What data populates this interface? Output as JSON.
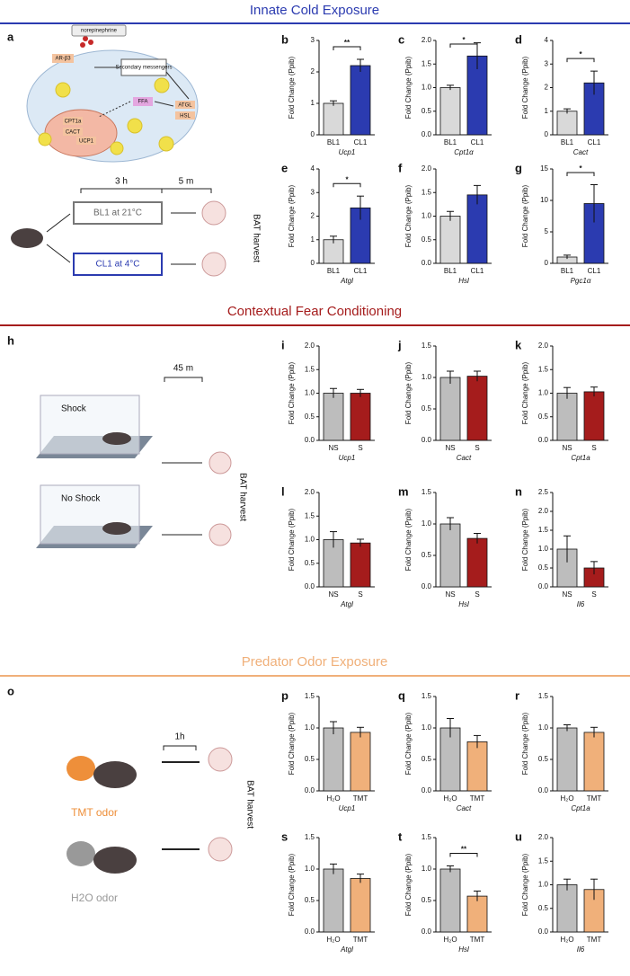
{
  "sections": [
    {
      "title": "Innate Cold Exposure",
      "color": "#2b3bb0"
    },
    {
      "title": "Contextual Fear Conditioning",
      "color": "#a51c1c"
    },
    {
      "title": "Predator Odor Exposure",
      "color": "#f0b07a"
    }
  ],
  "diagrams": {
    "a": {
      "panel": "a",
      "norepinephrine": "norepinephrine",
      "receptor": "AR-β3",
      "messengers": "Secondary messengers",
      "cpt": "CPT1a",
      "cact": "CACT",
      "ffa": "FFA",
      "atgl": "ATGL",
      "hsl": "HSL",
      "ucp": "UCP1",
      "t1": "3 h",
      "t2": "5 m",
      "bl": "BL1 at 21°C",
      "cl": "CL1 at 4°C",
      "harvest": "BAT harvest"
    },
    "h": {
      "panel": "h",
      "shock": "Shock",
      "noshock": "No Shock",
      "t": "45 m",
      "harvest": "BAT harvest"
    },
    "o": {
      "panel": "o",
      "t": "1h",
      "tmt": "TMT odor",
      "h2o": "H2O odor",
      "harvest": "BAT harvest"
    }
  },
  "chart_data": [
    {
      "type": "bar",
      "panel": "b",
      "ylabel": "Fold Change (Ppib)",
      "xlabel": "Ucp1",
      "categories": [
        "BL1",
        "CL1"
      ],
      "values": [
        1.0,
        2.2
      ],
      "errors": [
        0.08,
        0.2
      ],
      "colors": [
        "#d9d9d9",
        "#2b3bb0"
      ],
      "ylim": [
        0,
        3
      ],
      "yticks": [
        0,
        1,
        2,
        3
      ],
      "significance": "**"
    },
    {
      "type": "bar",
      "panel": "c",
      "ylabel": "Fold Change (Ppib)",
      "xlabel": "Cpt1α",
      "categories": [
        "BL1",
        "CL1"
      ],
      "values": [
        1.0,
        1.67
      ],
      "errors": [
        0.05,
        0.28
      ],
      "colors": [
        "#d9d9d9",
        "#2b3bb0"
      ],
      "ylim": [
        0,
        2
      ],
      "yticks": [
        {
          "value": 0,
          "label": "0.0"
        },
        0.5,
        {
          "value": 1,
          "label": "1.0"
        },
        1.5,
        {
          "value": 2,
          "label": "2.0"
        }
      ],
      "significance": "*"
    },
    {
      "type": "bar",
      "panel": "d",
      "ylabel": "Fold Change (Ppib)",
      "xlabel": "Cact",
      "categories": [
        "BL1",
        "CL1"
      ],
      "values": [
        1.0,
        2.2
      ],
      "errors": [
        0.1,
        0.5
      ],
      "colors": [
        "#d9d9d9",
        "#2b3bb0"
      ],
      "ylim": [
        0,
        4
      ],
      "yticks": [
        0,
        1,
        2,
        3,
        4
      ],
      "significance": "*"
    },
    {
      "type": "bar",
      "panel": "e",
      "ylabel": "Fold Change (Ppib)",
      "xlabel": "Atgl",
      "categories": [
        "BL1",
        "CL1"
      ],
      "values": [
        1.0,
        2.35
      ],
      "errors": [
        0.15,
        0.5
      ],
      "colors": [
        "#d9d9d9",
        "#2b3bb0"
      ],
      "ylim": [
        0,
        4
      ],
      "yticks": [
        0,
        1,
        2,
        3,
        4
      ],
      "significance": "*"
    },
    {
      "type": "bar",
      "panel": "f",
      "ylabel": "Fold Change (Ppib)",
      "xlabel": "Hsl",
      "categories": [
        "BL1",
        "CL1"
      ],
      "values": [
        1.0,
        1.45
      ],
      "errors": [
        0.1,
        0.2
      ],
      "colors": [
        "#d9d9d9",
        "#2b3bb0"
      ],
      "ylim": [
        0,
        2
      ],
      "yticks": [
        {
          "value": 0,
          "label": "0.0"
        },
        0.5,
        {
          "value": 1,
          "label": "1.0"
        },
        1.5,
        {
          "value": 2,
          "label": "2.0"
        }
      ]
    },
    {
      "type": "bar",
      "panel": "g",
      "ylabel": "Fold Change (Ppib)",
      "xlabel": "Pgc1α",
      "categories": [
        "BL1",
        "CL1"
      ],
      "values": [
        1.0,
        9.5
      ],
      "errors": [
        0.3,
        3.0
      ],
      "colors": [
        "#d9d9d9",
        "#2b3bb0"
      ],
      "ylim": [
        0,
        15
      ],
      "yticks": [
        0,
        5,
        10,
        15
      ],
      "significance": "*"
    },
    {
      "type": "bar",
      "panel": "i",
      "ylabel": "Fold Change (Ppib)",
      "xlabel": "Ucp1",
      "categories": [
        "NS",
        "S"
      ],
      "values": [
        1.0,
        1.0
      ],
      "errors": [
        0.1,
        0.08
      ],
      "colors": [
        "#bdbdbd",
        "#a51c1c"
      ],
      "ylim": [
        0,
        2
      ],
      "yticks": [
        {
          "value": 0,
          "label": "0.0"
        },
        0.5,
        {
          "value": 1,
          "label": "1.0"
        },
        1.5,
        {
          "value": 2,
          "label": "2.0"
        }
      ]
    },
    {
      "type": "bar",
      "panel": "j",
      "ylabel": "Fold Change (Ppib)",
      "xlabel": "Cact",
      "categories": [
        "NS",
        "S"
      ],
      "values": [
        1.0,
        1.02
      ],
      "errors": [
        0.1,
        0.08
      ],
      "colors": [
        "#bdbdbd",
        "#a51c1c"
      ],
      "ylim": [
        0,
        1.5
      ],
      "yticks": [
        {
          "value": 0,
          "label": "0.0"
        },
        0.5,
        {
          "value": 1,
          "label": "1.0"
        },
        1.5
      ]
    },
    {
      "type": "bar",
      "panel": "k",
      "ylabel": "Fold Change (Ppib)",
      "xlabel": "Cpt1a",
      "categories": [
        "NS",
        "S"
      ],
      "values": [
        1.0,
        1.03
      ],
      "errors": [
        0.12,
        0.1
      ],
      "colors": [
        "#bdbdbd",
        "#a51c1c"
      ],
      "ylim": [
        0,
        2
      ],
      "yticks": [
        {
          "value": 0,
          "label": "0.0"
        },
        0.5,
        {
          "value": 1,
          "label": "1.0"
        },
        1.5,
        {
          "value": 2,
          "label": "2.0"
        }
      ]
    },
    {
      "type": "bar",
      "panel": "l",
      "ylabel": "Fold Change (Ppib)",
      "xlabel": "Atgl",
      "categories": [
        "NS",
        "S"
      ],
      "values": [
        1.0,
        0.93
      ],
      "errors": [
        0.17,
        0.08
      ],
      "colors": [
        "#bdbdbd",
        "#a51c1c"
      ],
      "ylim": [
        0,
        2
      ],
      "yticks": [
        {
          "value": 0,
          "label": "0.0"
        },
        0.5,
        {
          "value": 1,
          "label": "1.0"
        },
        1.5,
        {
          "value": 2,
          "label": "2.0"
        }
      ]
    },
    {
      "type": "bar",
      "panel": "m",
      "ylabel": "Fold Change (Ppib)",
      "xlabel": "Hsl",
      "categories": [
        "NS",
        "S"
      ],
      "values": [
        1.0,
        0.77
      ],
      "errors": [
        0.1,
        0.08
      ],
      "colors": [
        "#bdbdbd",
        "#a51c1c"
      ],
      "ylim": [
        0,
        1.5
      ],
      "yticks": [
        {
          "value": 0,
          "label": "0.0"
        },
        0.5,
        {
          "value": 1,
          "label": "1.0"
        },
        1.5
      ]
    },
    {
      "type": "bar",
      "panel": "n",
      "ylabel": "Fold Change (Ppib)",
      "xlabel": "Il6",
      "categories": [
        "NS",
        "S"
      ],
      "values": [
        1.0,
        0.5
      ],
      "errors": [
        0.35,
        0.17
      ],
      "colors": [
        "#bdbdbd",
        "#a51c1c"
      ],
      "ylim": [
        0,
        2.5
      ],
      "yticks": [
        {
          "value": 0,
          "label": "0.0"
        },
        0.5,
        {
          "value": 1,
          "label": "1.0"
        },
        1.5,
        {
          "value": 2,
          "label": "2.0"
        },
        2.5
      ]
    },
    {
      "type": "bar",
      "panel": "p",
      "ylabel": "Fold Change (Ppib)",
      "xlabel": "Ucp1",
      "categories": [
        "H₂O",
        "TMT"
      ],
      "values": [
        1.0,
        0.93
      ],
      "errors": [
        0.1,
        0.08
      ],
      "colors": [
        "#bdbdbd",
        "#f0b07a"
      ],
      "ylim": [
        0,
        1.5
      ],
      "yticks": [
        {
          "value": 0,
          "label": "0.0"
        },
        0.5,
        {
          "value": 1,
          "label": "1.0"
        },
        1.5
      ]
    },
    {
      "type": "bar",
      "panel": "q",
      "ylabel": "Fold Change (Ppib)",
      "xlabel": "Cact",
      "categories": [
        "H₂O",
        "TMT"
      ],
      "values": [
        1.0,
        0.78
      ],
      "errors": [
        0.15,
        0.1
      ],
      "colors": [
        "#bdbdbd",
        "#f0b07a"
      ],
      "ylim": [
        0,
        1.5
      ],
      "yticks": [
        {
          "value": 0,
          "label": "0.0"
        },
        0.5,
        {
          "value": 1,
          "label": "1.0"
        },
        1.5
      ]
    },
    {
      "type": "bar",
      "panel": "r",
      "ylabel": "Fold Change (Ppib)",
      "xlabel": "Cpt1a",
      "categories": [
        "H₂O",
        "TMT"
      ],
      "values": [
        1.0,
        0.93
      ],
      "errors": [
        0.05,
        0.08
      ],
      "colors": [
        "#bdbdbd",
        "#f0b07a"
      ],
      "ylim": [
        0,
        1.5
      ],
      "yticks": [
        {
          "value": 0,
          "label": "0.0"
        },
        0.5,
        {
          "value": 1,
          "label": "1.0"
        },
        1.5
      ]
    },
    {
      "type": "bar",
      "panel": "s",
      "ylabel": "Fold Change (Ppib)",
      "xlabel": "Atgl",
      "categories": [
        "H₂O",
        "TMT"
      ],
      "values": [
        1.0,
        0.85
      ],
      "errors": [
        0.08,
        0.07
      ],
      "colors": [
        "#bdbdbd",
        "#f0b07a"
      ],
      "ylim": [
        0,
        1.5
      ],
      "yticks": [
        {
          "value": 0,
          "label": "0.0"
        },
        0.5,
        {
          "value": 1,
          "label": "1.0"
        },
        1.5
      ]
    },
    {
      "type": "bar",
      "panel": "t",
      "ylabel": "Fold Change (Ppib)",
      "xlabel": "Hsl",
      "categories": [
        "H₂O",
        "TMT"
      ],
      "values": [
        1.0,
        0.57
      ],
      "errors": [
        0.05,
        0.08
      ],
      "colors": [
        "#bdbdbd",
        "#f0b07a"
      ],
      "ylim": [
        0,
        1.5
      ],
      "yticks": [
        {
          "value": 0,
          "label": "0.0"
        },
        0.5,
        {
          "value": 1,
          "label": "1.0"
        },
        1.5
      ],
      "significance": "**"
    },
    {
      "type": "bar",
      "panel": "u",
      "ylabel": "Fold Change (Ppib)",
      "xlabel": "Il6",
      "categories": [
        "H₂O",
        "TMT"
      ],
      "values": [
        1.0,
        0.9
      ],
      "errors": [
        0.12,
        0.22
      ],
      "colors": [
        "#bdbdbd",
        "#f0b07a"
      ],
      "ylim": [
        0,
        2
      ],
      "yticks": [
        {
          "value": 0,
          "label": "0.0"
        },
        0.5,
        {
          "value": 1,
          "label": "1.0"
        },
        1.5,
        {
          "value": 2,
          "label": "2.0"
        }
      ]
    }
  ]
}
